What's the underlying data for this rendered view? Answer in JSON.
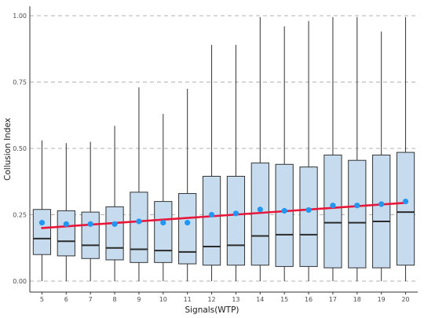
{
  "chart_data": {
    "type": "box",
    "title": "",
    "xlabel": "Signals(WTP)",
    "ylabel": "Collusion Index",
    "ylim": [
      0,
      1
    ],
    "y_ticks": [
      0.0,
      0.25,
      0.5,
      0.75,
      1.0
    ],
    "y_tick_labels": [
      "0.00",
      "0.25",
      "0.50",
      "0.75",
      "1.00"
    ],
    "grid": "horizontal dashed at major y ticks",
    "categories": [
      "5",
      "6",
      "7",
      "8",
      "9",
      "10",
      "11",
      "12",
      "13",
      "14",
      "15",
      "16",
      "17",
      "18",
      "19",
      "20"
    ],
    "boxes": [
      {
        "x": "5",
        "whisker_low": 0.0,
        "q1": 0.1,
        "median": 0.16,
        "q3": 0.27,
        "whisker_high": 0.53,
        "mean": 0.22
      },
      {
        "x": "6",
        "whisker_low": 0.0,
        "q1": 0.095,
        "median": 0.15,
        "q3": 0.265,
        "whisker_high": 0.52,
        "mean": 0.215
      },
      {
        "x": "7",
        "whisker_low": 0.0,
        "q1": 0.085,
        "median": 0.135,
        "q3": 0.26,
        "whisker_high": 0.525,
        "mean": 0.215
      },
      {
        "x": "8",
        "whisker_low": 0.0,
        "q1": 0.08,
        "median": 0.125,
        "q3": 0.28,
        "whisker_high": 0.585,
        "mean": 0.215
      },
      {
        "x": "9",
        "whisker_low": 0.0,
        "q1": 0.07,
        "median": 0.12,
        "q3": 0.335,
        "whisker_high": 0.73,
        "mean": 0.225
      },
      {
        "x": "10",
        "whisker_low": 0.0,
        "q1": 0.07,
        "median": 0.115,
        "q3": 0.3,
        "whisker_high": 0.63,
        "mean": 0.22
      },
      {
        "x": "11",
        "whisker_low": 0.0,
        "q1": 0.065,
        "median": 0.11,
        "q3": 0.33,
        "whisker_high": 0.725,
        "mean": 0.22
      },
      {
        "x": "12",
        "whisker_low": 0.0,
        "q1": 0.06,
        "median": 0.13,
        "q3": 0.395,
        "whisker_high": 0.89,
        "mean": 0.25
      },
      {
        "x": "13",
        "whisker_low": 0.0,
        "q1": 0.06,
        "median": 0.135,
        "q3": 0.395,
        "whisker_high": 0.89,
        "mean": 0.255
      },
      {
        "x": "14",
        "whisker_low": 0.0,
        "q1": 0.06,
        "median": 0.17,
        "q3": 0.445,
        "whisker_high": 0.995,
        "mean": 0.27
      },
      {
        "x": "15",
        "whisker_low": 0.0,
        "q1": 0.055,
        "median": 0.175,
        "q3": 0.44,
        "whisker_high": 0.96,
        "mean": 0.265
      },
      {
        "x": "16",
        "whisker_low": 0.0,
        "q1": 0.055,
        "median": 0.175,
        "q3": 0.43,
        "whisker_high": 0.98,
        "mean": 0.268
      },
      {
        "x": "17",
        "whisker_low": 0.0,
        "q1": 0.05,
        "median": 0.22,
        "q3": 0.475,
        "whisker_high": 0.995,
        "mean": 0.285
      },
      {
        "x": "18",
        "whisker_low": 0.0,
        "q1": 0.05,
        "median": 0.22,
        "q3": 0.455,
        "whisker_high": 0.995,
        "mean": 0.285
      },
      {
        "x": "19",
        "whisker_low": 0.0,
        "q1": 0.05,
        "median": 0.225,
        "q3": 0.475,
        "whisker_high": 0.94,
        "mean": 0.29
      },
      {
        "x": "20",
        "whisker_low": 0.0,
        "q1": 0.06,
        "median": 0.26,
        "q3": 0.485,
        "whisker_high": 0.995,
        "mean": 0.3
      }
    ],
    "trend_line": {
      "x_start": "5",
      "y_start": 0.2,
      "x_end": "20",
      "y_end": 0.295
    },
    "colors": {
      "box_fill": "#c6dcee",
      "box_stroke": "#333333",
      "median": "#2b2b2b",
      "mean_point": "#2196f3",
      "trend_line": "#e8173a",
      "grid": "#b3b3b3",
      "axis": "#333333"
    }
  }
}
